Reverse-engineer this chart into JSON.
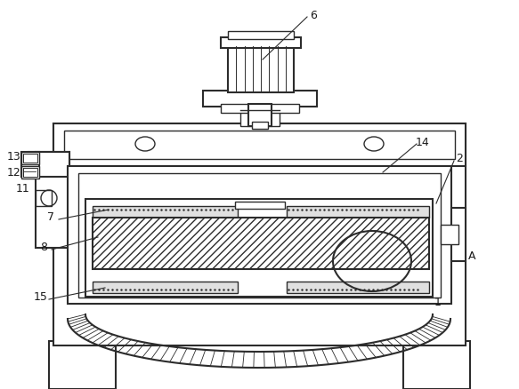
{
  "background_color": "#ffffff",
  "line_color": "#2c2c2c",
  "figsize": [
    5.83,
    4.39
  ],
  "dpi": 100,
  "label_color": "#1a1a1a"
}
